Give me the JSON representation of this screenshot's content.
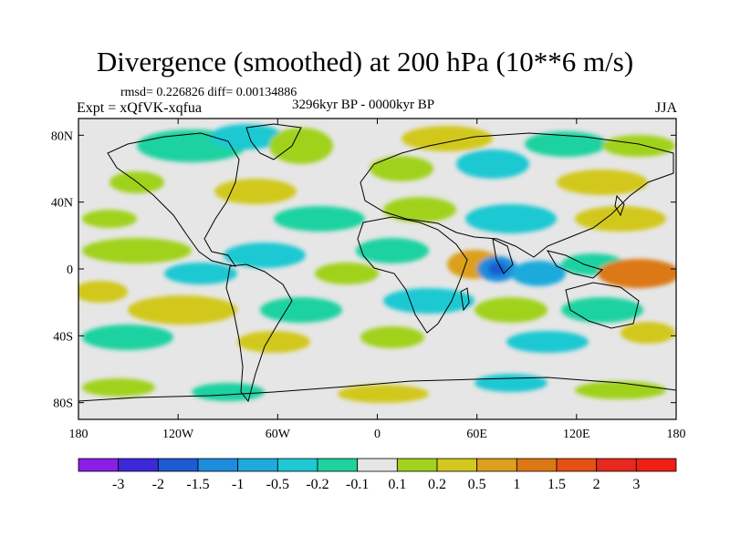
{
  "title": "Divergence (smoothed) at 200 hPa (10**6 m/s)",
  "stats": "rmsd= 0.226826 diff= 0.00134886",
  "experiment": "Expt = xQfVK-xqfua",
  "period": "3296kyr BP - 0000kyr BP",
  "season": "JJA",
  "lat_ticks": [
    "80N",
    "40N",
    "0",
    "40S",
    "80S"
  ],
  "lat_values": [
    80,
    40,
    0,
    -40,
    -80
  ],
  "lon_ticks": [
    "180",
    "120W",
    "60W",
    "0",
    "60E",
    "120E",
    "180"
  ],
  "lon_values": [
    -180,
    -120,
    -60,
    0,
    60,
    120,
    180
  ],
  "lat_range": [
    -90,
    90
  ],
  "lon_range": [
    -180,
    180
  ],
  "colorbar": {
    "labels": [
      "-3",
      "-2",
      "-1.5",
      "-1",
      "-0.5",
      "-0.2",
      "-0.1",
      "0.1",
      "0.2",
      "0.5",
      "1",
      "1.5",
      "2",
      "3"
    ],
    "colors": [
      "#8a1ee6",
      "#3c28d8",
      "#1e5ad2",
      "#1e8cdc",
      "#1eaadc",
      "#1ec8d2",
      "#1ed2a0",
      "#e6e6e6",
      "#a0d21e",
      "#d2c81e",
      "#dca01e",
      "#dc7814",
      "#e65014",
      "#e6281e",
      "#f01e14"
    ]
  }
}
